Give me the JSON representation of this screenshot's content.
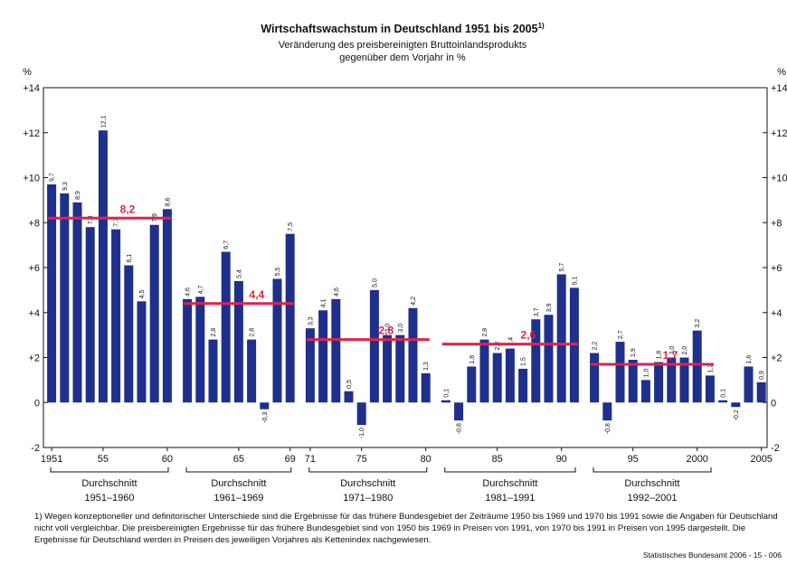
{
  "chart_data": {
    "type": "bar",
    "title": "Wirtschaftswachstum in Deutschland 1951 bis 2005",
    "title_note": "1)",
    "subtitle": [
      "Veränderung des preisbereinigten Bruttoinlandsprodukts",
      "gegenüber dem Vorjahr in %"
    ],
    "y_unit": "%",
    "color": "#1f2f8c",
    "average_color": "#e0234b",
    "ylim": [
      -2,
      14
    ],
    "yticks": [
      {
        "value": 14,
        "label": "+14"
      },
      {
        "value": 12,
        "label": "+12"
      },
      {
        "value": 10,
        "label": "+10"
      },
      {
        "value": 8,
        "label": "+8"
      },
      {
        "value": 6,
        "label": "+6"
      },
      {
        "value": 4,
        "label": "+4"
      },
      {
        "value": 2,
        "label": "+2"
      },
      0,
      -2
    ],
    "groups": [
      {
        "name": "Durchschnitt",
        "period": "1951–1960",
        "average": 8.2,
        "average_label": "8,2",
        "categories": [
          "1951",
          null,
          null,
          null,
          "55",
          null,
          null,
          null,
          null,
          "60"
        ],
        "values": [
          9.7,
          9.3,
          8.9,
          7.8,
          12.1,
          7.7,
          6.1,
          4.5,
          7.9,
          8.6
        ],
        "value_labels": [
          "9,7",
          "9,3",
          "8,9",
          "7,8",
          "12,1",
          "7,7",
          "6,1",
          "4,5",
          "7,9",
          "8,6"
        ]
      },
      {
        "name": "Durchschnitt",
        "period": "1961–1969",
        "average": 4.4,
        "average_label": "4,4",
        "categories": [
          null,
          null,
          null,
          null,
          "65",
          null,
          null,
          null,
          "69"
        ],
        "values": [
          4.6,
          4.7,
          2.8,
          6.7,
          5.4,
          2.8,
          -0.3,
          5.5,
          7.5
        ],
        "value_labels": [
          "4,6",
          "4,7",
          "2,8",
          "6,7",
          "5,4",
          "2,8",
          "-0,3",
          "5,5",
          "7,5"
        ]
      },
      {
        "name": "Durchschnitt",
        "period": "1971–1980",
        "average": 2.8,
        "average_label": "2,8",
        "categories": [
          "71",
          null,
          null,
          null,
          "75",
          null,
          null,
          null,
          null,
          "80"
        ],
        "values": [
          3.3,
          4.1,
          4.6,
          0.5,
          -1.0,
          5.0,
          3.0,
          3.0,
          4.2,
          1.3
        ],
        "value_labels": [
          "3,3",
          "4,1",
          "4,6",
          "0,5",
          "-1,0",
          "5,0",
          "3,0",
          "3,0",
          "4,2",
          "1,3"
        ]
      },
      {
        "name": "Durchschnitt",
        "period": "1981–1991",
        "average": 2.6,
        "average_label": "2,6",
        "categories": [
          null,
          null,
          null,
          null,
          "85",
          null,
          null,
          null,
          null,
          "90",
          null
        ],
        "values": [
          0.1,
          -0.8,
          1.6,
          2.8,
          2.2,
          2.4,
          1.5,
          3.7,
          3.9,
          5.7,
          5.1
        ],
        "value_labels": [
          "0,1",
          "-0,8",
          "1,6",
          "2,8",
          "2,2",
          "2,4",
          "1,5",
          "3,7",
          "3,9",
          "5,7",
          "5,1"
        ]
      },
      {
        "name": "Durchschnitt",
        "period": "1992–2001",
        "average": 1.7,
        "average_label": "1,7",
        "categories": [
          null,
          null,
          null,
          "95",
          null,
          null,
          null,
          null,
          "2000",
          null
        ],
        "values": [
          2.2,
          -0.8,
          2.7,
          1.9,
          1.0,
          1.8,
          2.0,
          2.0,
          3.2,
          1.2
        ],
        "value_labels": [
          "2,2",
          "-0,8",
          "2,7",
          "1,9",
          "1,0",
          "1,8",
          "2,0",
          "2,0",
          "3,2",
          "1,2"
        ]
      },
      {
        "categories": [
          null,
          null,
          null,
          "2005"
        ],
        "values": [
          0.1,
          -0.2,
          1.6,
          0.9
        ],
        "value_labels": [
          "0,1",
          "-0,2",
          "1,6",
          "0,9"
        ]
      }
    ]
  },
  "footnote": "1) Wegen konzeptioneller und definitorischer Unterschiede sind die Ergebnisse für das frühere Bundesgebiet der Zeiträume 1950 bis 1969 und 1970 bis 1991 sowie die Angaben für Deutschland nicht voll vergleichbar. Die preisbereinigten Ergebnisse für das frühere Bundesgebiet sind von 1950 bis 1969 in Preisen von 1991, von 1970 bis 1991 in Preisen von 1995 dargestellt. Die Ergebnisse für Deutschland werden in Preisen des jeweiligen Vorjahres als Kettenindex nachgewiesen.",
  "source": "Statistisches Bundesamt 2006 - 15 - 006"
}
